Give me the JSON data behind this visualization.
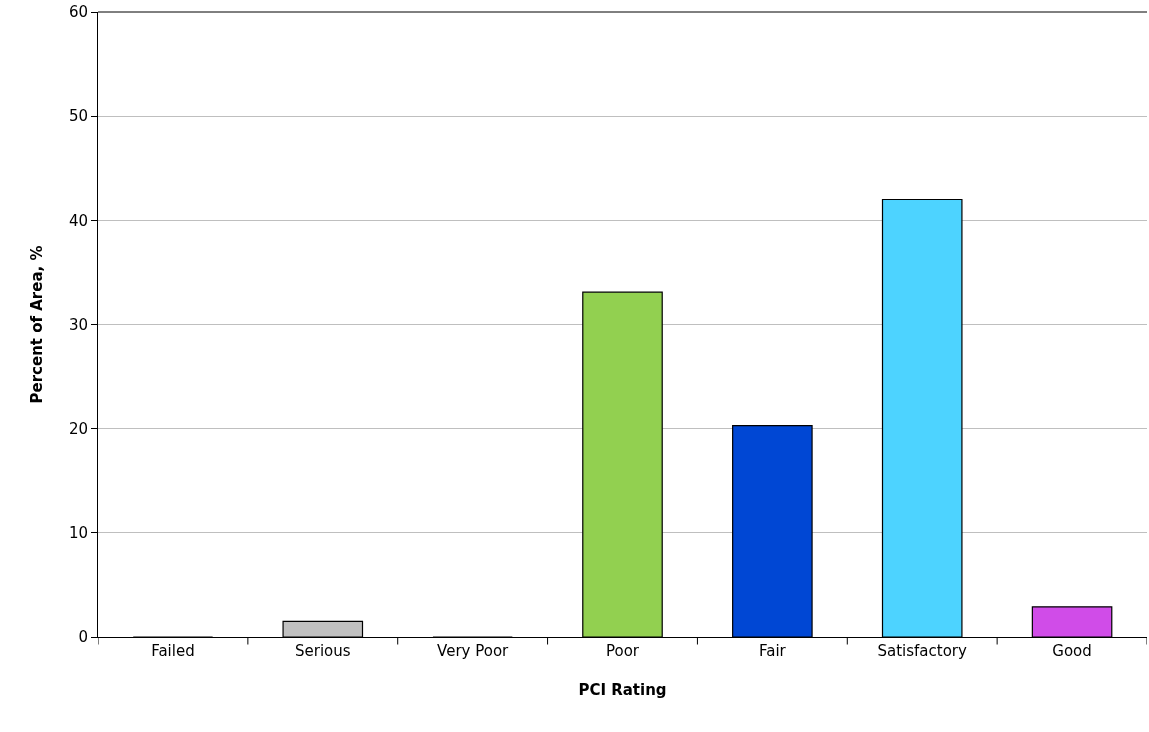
{
  "chart_data": {
    "type": "bar",
    "xlabel": "PCI Rating",
    "ylabel": "Percent of Area, %",
    "categories": [
      "Failed",
      "Serious",
      "Very Poor",
      "Poor",
      "Fair",
      "Satisfactory",
      "Good"
    ],
    "values": [
      0,
      1.5,
      0,
      33.1,
      20.3,
      42.0,
      2.9
    ],
    "colors": [
      "#c00000",
      "#c0c0c0",
      "#ff0000",
      "#92d050",
      "#0047d4",
      "#4dd3ff",
      "#d04ce8"
    ],
    "ylim": [
      0,
      60
    ],
    "yticks": [
      0,
      10,
      20,
      30,
      40,
      50,
      60
    ],
    "grid": "y"
  }
}
